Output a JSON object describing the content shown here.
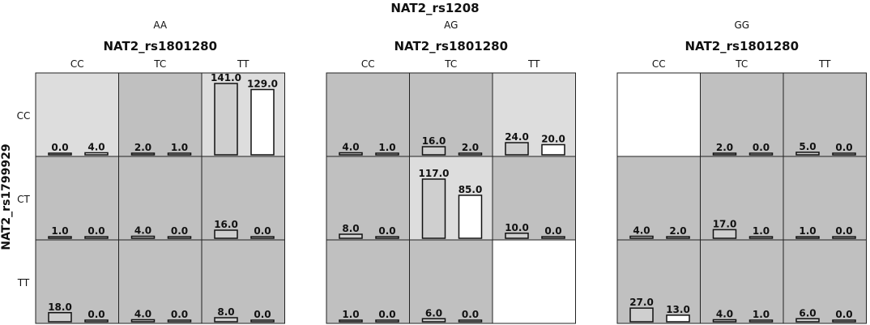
{
  "chart_data": {
    "type": "bar",
    "title": "NAT2_rs1208",
    "ylabel": "NAT2_rs1799929",
    "panel_xlabel": "NAT2_rs1801280",
    "row_labels": [
      "CC",
      "CT",
      "TT"
    ],
    "col_labels": [
      "CC",
      "TC",
      "TT"
    ],
    "max_value": 141,
    "colors": {
      "cell_dark": "#c0c0c0",
      "cell_light": "#dddddd",
      "cell_empty": "#ffffff",
      "bar_grey": "#cfcfcf",
      "bar_white": "#ffffff",
      "grid": "#222222"
    },
    "panels": [
      {
        "group": "AA",
        "cells": [
          [
            {
              "values": [
                0.0,
                4.0
              ],
              "labels": [
                "0.0",
                "4.0"
              ],
              "shade": "light"
            },
            {
              "values": [
                2.0,
                1.0
              ],
              "labels": [
                "2.0",
                "1.0"
              ],
              "shade": "dark"
            },
            {
              "values": [
                141.0,
                129.0
              ],
              "labels": [
                "141.0",
                "129.0"
              ],
              "shade": "light"
            }
          ],
          [
            {
              "values": [
                1.0,
                0.0
              ],
              "labels": [
                "1.0",
                "0.0"
              ],
              "shade": "dark"
            },
            {
              "values": [
                4.0,
                0.0
              ],
              "labels": [
                "4.0",
                "0.0"
              ],
              "shade": "dark"
            },
            {
              "values": [
                16.0,
                0.0
              ],
              "labels": [
                "16.0",
                "0.0"
              ],
              "shade": "dark"
            }
          ],
          [
            {
              "values": [
                18.0,
                0.0
              ],
              "labels": [
                "18.0",
                "0.0"
              ],
              "shade": "dark"
            },
            {
              "values": [
                4.0,
                0.0
              ],
              "labels": [
                "4.0",
                "0.0"
              ],
              "shade": "dark"
            },
            {
              "values": [
                8.0,
                0.0
              ],
              "labels": [
                "8.0",
                "0.0"
              ],
              "shade": "dark"
            }
          ]
        ]
      },
      {
        "group": "AG",
        "cells": [
          [
            {
              "values": [
                4.0,
                1.0
              ],
              "labels": [
                "4.0",
                "1.0"
              ],
              "shade": "dark"
            },
            {
              "values": [
                16.0,
                2.0
              ],
              "labels": [
                "16.0",
                "2.0"
              ],
              "shade": "dark"
            },
            {
              "values": [
                24.0,
                20.0
              ],
              "labels": [
                "24.0",
                "20.0"
              ],
              "shade": "light"
            }
          ],
          [
            {
              "values": [
                8.0,
                0.0
              ],
              "labels": [
                "8.0",
                "0.0"
              ],
              "shade": "dark"
            },
            {
              "values": [
                117.0,
                85.0
              ],
              "labels": [
                "117.0",
                "85.0"
              ],
              "shade": "light"
            },
            {
              "values": [
                10.0,
                0.0
              ],
              "labels": [
                "10.0",
                "0.0"
              ],
              "shade": "dark"
            }
          ],
          [
            {
              "values": [
                1.0,
                0.0
              ],
              "labels": [
                "1.0",
                "0.0"
              ],
              "shade": "dark"
            },
            {
              "values": [
                6.0,
                0.0
              ],
              "labels": [
                "6.0",
                "0.0"
              ],
              "shade": "dark"
            },
            null
          ]
        ]
      },
      {
        "group": "GG",
        "cells": [
          [
            null,
            {
              "values": [
                2.0,
                0.0
              ],
              "labels": [
                "2.0",
                "0.0"
              ],
              "shade": "dark"
            },
            {
              "values": [
                5.0,
                0.0
              ],
              "labels": [
                "5.0",
                "0.0"
              ],
              "shade": "dark"
            }
          ],
          [
            {
              "values": [
                4.0,
                2.0
              ],
              "labels": [
                "4.0",
                "2.0"
              ],
              "shade": "dark"
            },
            {
              "values": [
                17.0,
                1.0
              ],
              "labels": [
                "17.0",
                "1.0"
              ],
              "shade": "dark"
            },
            {
              "values": [
                1.0,
                0.0
              ],
              "labels": [
                "1.0",
                "0.0"
              ],
              "shade": "dark"
            }
          ],
          [
            {
              "values": [
                27.0,
                13.0
              ],
              "labels": [
                "27.0",
                "13.0"
              ],
              "shade": "dark"
            },
            {
              "values": [
                4.0,
                1.0
              ],
              "labels": [
                "4.0",
                "1.0"
              ],
              "shade": "dark"
            },
            {
              "values": [
                6.0,
                0.0
              ],
              "labels": [
                "6.0",
                "0.0"
              ],
              "shade": "dark"
            }
          ]
        ]
      }
    ]
  }
}
